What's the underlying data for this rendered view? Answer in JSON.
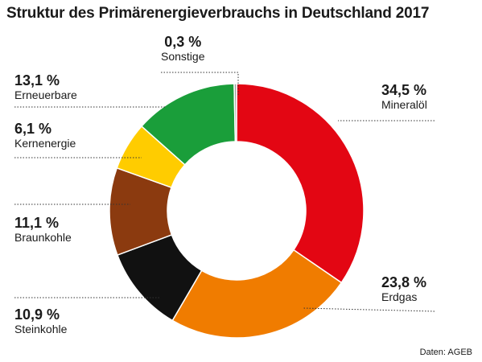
{
  "chart_data": {
    "type": "pie",
    "variant": "donut",
    "title": "Struktur des Primärenergieverbrauchs in Deutschland 2017",
    "source": "Daten: AGEB",
    "slices": [
      {
        "label": "Mineralöl",
        "value": 34.5,
        "display": "34,5 %",
        "color": "#e30613"
      },
      {
        "label": "Erdgas",
        "value": 23.8,
        "display": "23,8 %",
        "color": "#f07c00"
      },
      {
        "label": "Steinkohle",
        "value": 10.9,
        "display": "10,9 %",
        "color": "#111111"
      },
      {
        "label": "Braunkohle",
        "value": 11.1,
        "display": "11,1 %",
        "color": "#8b3a0f"
      },
      {
        "label": "Kernenergie",
        "value": 6.1,
        "display": "6,1 %",
        "color": "#ffcc00"
      },
      {
        "label": "Erneuerbare",
        "value": 13.1,
        "display": "13,1 %",
        "color": "#1a9e3a"
      },
      {
        "label": "Sonstige",
        "value": 0.3,
        "display": "0,3 %",
        "color": "#9a9a9a"
      }
    ]
  }
}
